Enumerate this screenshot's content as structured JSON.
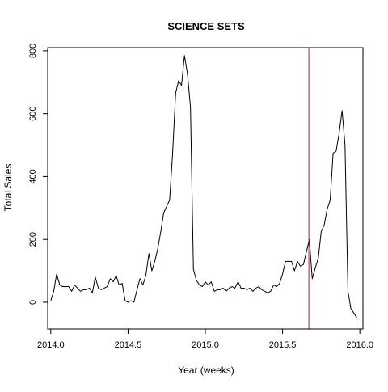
{
  "chart_data": {
    "type": "line",
    "title": "SCIENCE SETS",
    "xlabel": "Year (weeks)",
    "ylabel": "Total Sales",
    "xlim": [
      2013.98,
      2016.02
    ],
    "ylim": [
      -85,
      810
    ],
    "x_ticks": [
      2014.0,
      2014.5,
      2015.0,
      2015.5,
      2016.0
    ],
    "x_tick_labels": [
      "2014.0",
      "2014.5",
      "2015.0",
      "2015.5",
      "2016.0"
    ],
    "y_ticks": [
      0,
      200,
      400,
      600,
      800
    ],
    "y_tick_labels": [
      "0",
      "200",
      "400",
      "600",
      "800"
    ],
    "grid": false,
    "vline": {
      "x": 2015.67,
      "color": "#b2182b"
    },
    "series": [
      {
        "color": "#000000",
        "x": [
          2014.0,
          2014.019,
          2014.038,
          2014.058,
          2014.077,
          2014.096,
          2014.115,
          2014.135,
          2014.154,
          2014.173,
          2014.192,
          2014.212,
          2014.231,
          2014.25,
          2014.269,
          2014.288,
          2014.308,
          2014.327,
          2014.346,
          2014.365,
          2014.385,
          2014.404,
          2014.423,
          2014.442,
          2014.462,
          2014.481,
          2014.5,
          2014.519,
          2014.538,
          2014.558,
          2014.577,
          2014.596,
          2014.615,
          2014.635,
          2014.654,
          2014.673,
          2014.692,
          2014.712,
          2014.731,
          2014.75,
          2014.769,
          2014.788,
          2014.808,
          2014.827,
          2014.846,
          2014.865,
          2014.885,
          2014.904,
          2014.923,
          2014.942,
          2014.962,
          2014.981,
          2015.0,
          2015.019,
          2015.038,
          2015.058,
          2015.077,
          2015.096,
          2015.115,
          2015.135,
          2015.154,
          2015.173,
          2015.192,
          2015.212,
          2015.231,
          2015.25,
          2015.269,
          2015.288,
          2015.308,
          2015.327,
          2015.346,
          2015.365,
          2015.385,
          2015.404,
          2015.423,
          2015.442,
          2015.462,
          2015.481,
          2015.5,
          2015.519,
          2015.538,
          2015.558,
          2015.577,
          2015.596,
          2015.615,
          2015.635,
          2015.654,
          2015.673,
          2015.692,
          2015.712,
          2015.731,
          2015.75,
          2015.769,
          2015.788,
          2015.808,
          2015.827,
          2015.846,
          2015.865,
          2015.885,
          2015.904,
          2015.923,
          2015.942,
          2015.962,
          2015.981
        ],
        "values": [
          5,
          35,
          90,
          55,
          50,
          50,
          50,
          35,
          55,
          45,
          35,
          40,
          40,
          45,
          30,
          80,
          45,
          40,
          45,
          50,
          75,
          65,
          85,
          55,
          60,
          5,
          0,
          5,
          0,
          40,
          75,
          55,
          85,
          155,
          100,
          130,
          170,
          225,
          285,
          305,
          325,
          470,
          665,
          705,
          690,
          785,
          725,
          620,
          105,
          70,
          55,
          50,
          65,
          55,
          65,
          35,
          40,
          40,
          45,
          35,
          45,
          50,
          45,
          65,
          45,
          45,
          40,
          45,
          35,
          45,
          50,
          40,
          35,
          30,
          35,
          55,
          50,
          60,
          90,
          130,
          130,
          130,
          100,
          130,
          115,
          120,
          160,
          200,
          75,
          110,
          140,
          225,
          245,
          295,
          325,
          475,
          480,
          535,
          610,
          500,
          35,
          -20,
          -35,
          -50
        ]
      }
    ]
  }
}
